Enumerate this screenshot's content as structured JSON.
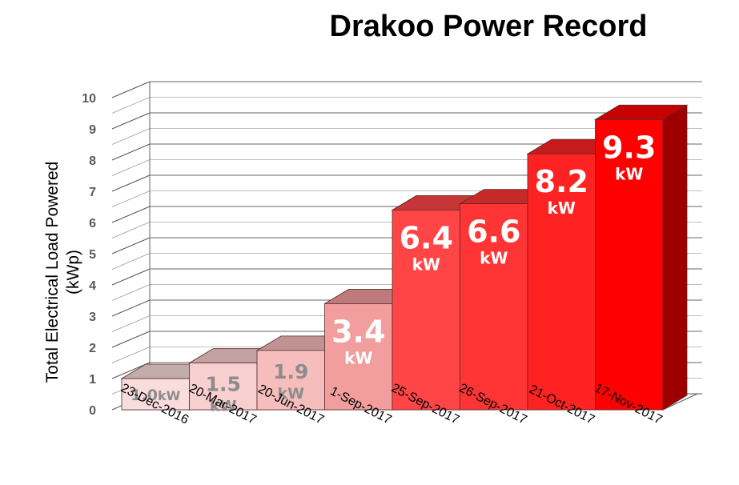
{
  "chart_data": {
    "type": "bar",
    "title": "Drakoo Power Record",
    "ylabel": "Total Electrical Load Powered (kWp)",
    "xlabel": "",
    "ylim": [
      0,
      10
    ],
    "yticks": [
      "0",
      "1",
      "2",
      "3",
      "4",
      "5",
      "6",
      "7",
      "8",
      "9",
      "10"
    ],
    "grid": true,
    "style": "3d-column",
    "categories": [
      "23-Dec-2016",
      "20-Mar-2017",
      "20-Jun-2017",
      "1-Sep-2017",
      "25-Sep-2017",
      "26-Sep-2017",
      "21-Oct-2017",
      "17-Nov-2017"
    ],
    "values": [
      1.0,
      1.5,
      1.9,
      3.4,
      6.4,
      6.6,
      8.2,
      9.3
    ],
    "data_labels": [
      "1.0",
      "1.5",
      "1.9",
      "3.4",
      "6.4",
      "6.6",
      "8.2",
      "9.3"
    ],
    "label_unit": "kW",
    "colors": {
      "bars": [
        "#f9dcdc",
        "#f8cfcf",
        "#f6bdbd",
        "#f29e9e",
        "#ff4545",
        "#ff3535",
        "#ff2222",
        "#ff0000"
      ],
      "labels": [
        "#8c8c8c",
        "#8c8c8c",
        "#8c8c8c",
        "#ffffff",
        "#ffffff",
        "#ffffff",
        "#ffffff",
        "#ffffff"
      ]
    }
  }
}
